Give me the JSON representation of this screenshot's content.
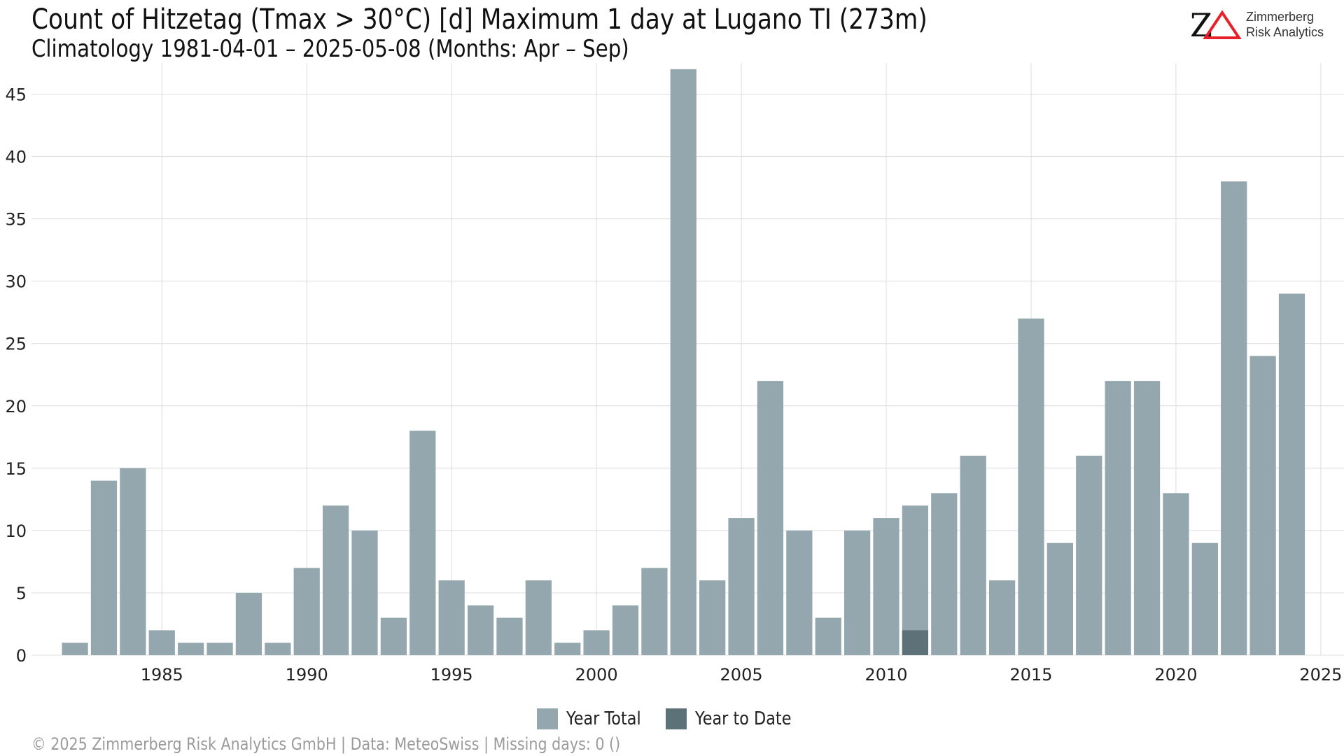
{
  "header": {
    "title": "Count of Hitzetag (Tmax > 30°C) [d] Maximum 1 day at Lugano  TI (273m)",
    "subtitle": "Climatology 1981-04-01 – 2025-05-08 (Months: Apr – Sep)"
  },
  "logo": {
    "mark": "ZΔ",
    "name_line1": "Zimmerberg",
    "name_line2": "Risk Analytics",
    "colors": {
      "z": "#111111",
      "delta": "#e8202a"
    }
  },
  "footer": {
    "text": "©  2025 Zimmerberg Risk Analytics GmbH | Data: MeteoSwiss | Missing days: 0 ()"
  },
  "chart_data": {
    "type": "bar",
    "title": "Count of Hitzetag (Tmax > 30°C) [d] Maximum 1 day at Lugano  TI (273m)",
    "xlabel": "",
    "ylabel": "",
    "xlim": [
      1980.5,
      2025.8
    ],
    "ylim": [
      0,
      47.5
    ],
    "x_ticks": [
      1985,
      1990,
      1995,
      2000,
      2005,
      2010,
      2015,
      2020,
      2025
    ],
    "y_ticks": [
      0,
      5,
      10,
      15,
      20,
      25,
      30,
      35,
      40,
      45
    ],
    "grid": true,
    "legend_position": "bottom",
    "colors": {
      "year_total": "#94a7ae",
      "year_to_date": "#5c7178",
      "grid": "#dcdcdc"
    },
    "series": [
      {
        "name": "Year Total",
        "x": [
          1982,
          1983,
          1984,
          1985,
          1986,
          1987,
          1988,
          1989,
          1990,
          1991,
          1992,
          1993,
          1994,
          1995,
          1996,
          1997,
          1998,
          1999,
          2000,
          2001,
          2002,
          2003,
          2004,
          2005,
          2006,
          2007,
          2008,
          2009,
          2010,
          2011,
          2012,
          2013,
          2014,
          2015,
          2016,
          2017,
          2018,
          2019,
          2020,
          2021,
          2022,
          2023,
          2024
        ],
        "values": [
          1,
          14,
          15,
          2,
          1,
          1,
          5,
          1,
          7,
          12,
          10,
          3,
          18,
          6,
          4,
          3,
          6,
          1,
          2,
          4,
          7,
          47,
          6,
          11,
          22,
          10,
          3,
          10,
          11,
          12,
          13,
          16,
          6,
          27,
          9,
          16,
          22,
          22,
          13,
          9,
          38,
          24,
          29
        ]
      },
      {
        "name": "Year to Date",
        "x": [
          2011
        ],
        "values": [
          2
        ]
      }
    ]
  }
}
